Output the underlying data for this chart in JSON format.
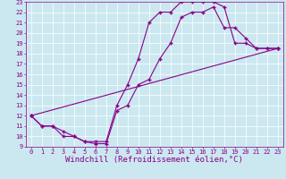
{
  "xlabel": "Windchill (Refroidissement éolien,°C)",
  "bg_color": "#cbe8f0",
  "line_color": "#880088",
  "xlim": [
    -0.5,
    23.5
  ],
  "ylim": [
    9,
    23
  ],
  "xticks": [
    0,
    1,
    2,
    3,
    4,
    5,
    6,
    7,
    8,
    9,
    10,
    11,
    12,
    13,
    14,
    15,
    16,
    17,
    18,
    19,
    20,
    21,
    22,
    23
  ],
  "yticks": [
    9,
    10,
    11,
    12,
    13,
    14,
    15,
    16,
    17,
    18,
    19,
    20,
    21,
    22,
    23
  ],
  "curve1_x": [
    0,
    1,
    2,
    3,
    4,
    5,
    6,
    7,
    8,
    9,
    10,
    11,
    12,
    13,
    14,
    15,
    16,
    17,
    18,
    19,
    20,
    21,
    22,
    23
  ],
  "curve1_y": [
    12,
    11,
    11,
    10,
    10,
    9.5,
    9.5,
    9.5,
    13,
    15,
    17.5,
    21,
    22,
    22,
    23,
    23,
    23,
    23,
    22.5,
    19,
    19,
    18.5,
    18.5,
    18.5
  ],
  "curve2_x": [
    0,
    1,
    2,
    3,
    4,
    5,
    6,
    7,
    8,
    9,
    10,
    11,
    12,
    13,
    14,
    15,
    16,
    17,
    18,
    19,
    20,
    21,
    22,
    23
  ],
  "curve2_y": [
    12,
    11,
    11,
    10.5,
    10,
    9.5,
    9.3,
    9.3,
    12.5,
    13,
    15,
    15.5,
    17.5,
    19,
    21.5,
    22,
    22,
    22.5,
    20.5,
    20.5,
    19.5,
    18.5,
    18.5,
    18.5
  ],
  "curve3_x": [
    0,
    23
  ],
  "curve3_y": [
    12,
    18.5
  ],
  "marker": "+",
  "markersize": 3,
  "markeredgewidth": 1.0,
  "linewidth": 0.8,
  "tick_fontsize": 5,
  "xlabel_fontsize": 6.5
}
